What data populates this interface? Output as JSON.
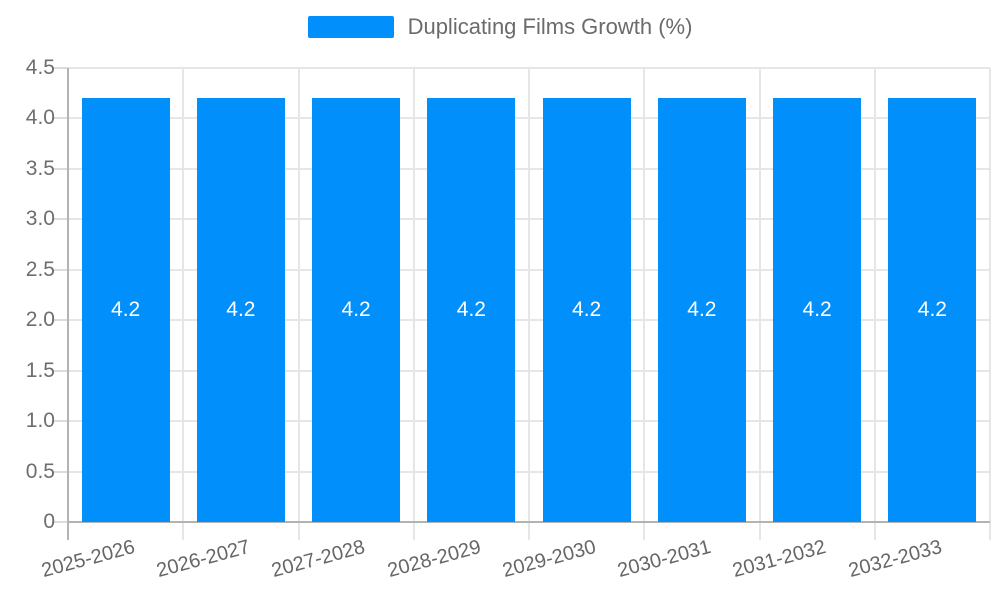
{
  "chart_data": {
    "type": "bar",
    "title": "Duplicating Films Growth (%)",
    "categories": [
      "2025-2026",
      "2026-2027",
      "2027-2028",
      "2028-2029",
      "2029-2030",
      "2030-2031",
      "2031-2032",
      "2032-2033"
    ],
    "series": [
      {
        "name": "Duplicating Films Growth (%)",
        "values": [
          4.2,
          4.2,
          4.2,
          4.2,
          4.2,
          4.2,
          4.2,
          4.2
        ]
      }
    ],
    "value_labels": [
      "4.2",
      "4.2",
      "4.2",
      "4.2",
      "4.2",
      "4.2",
      "4.2",
      "4.2"
    ],
    "xlabel": "",
    "ylabel": "",
    "ylim": [
      0,
      4.5
    ],
    "yticks": [
      0,
      0.5,
      1.0,
      1.5,
      2.0,
      2.5,
      3.0,
      3.5,
      4.0,
      4.5
    ],
    "ytick_labels": [
      "0",
      "0.5",
      "1.0",
      "1.5",
      "2.0",
      "2.5",
      "3.0",
      "3.5",
      "4.0",
      "4.5"
    ],
    "grid": "horizontal and vertical category boundaries",
    "legend_position": "top-center",
    "colors": {
      "bar": "#008FFB",
      "value_label": "#FFFFFF",
      "legend_text": "#6B6B6B",
      "axis_text": "#6A6A6A",
      "gridline": "#E6E6E6",
      "axis_line": "#B3B3B3"
    }
  }
}
